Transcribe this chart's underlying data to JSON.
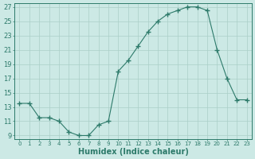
{
  "x": [
    0,
    1,
    2,
    3,
    4,
    5,
    6,
    7,
    8,
    9,
    10,
    11,
    12,
    13,
    14,
    15,
    16,
    17,
    18,
    19,
    20,
    21,
    22,
    23
  ],
  "y": [
    13.5,
    13.5,
    11.5,
    11.5,
    11.0,
    9.5,
    9.0,
    9.0,
    10.5,
    11.0,
    18.0,
    19.5,
    21.5,
    23.5,
    25.0,
    26.0,
    26.5,
    27.0,
    27.0,
    26.5,
    21.0,
    17.0,
    14.0,
    14.0
  ],
  "xlabel": "Humidex (Indice chaleur)",
  "ylim_min": 8.5,
  "ylim_max": 27.5,
  "xlim_min": -0.5,
  "xlim_max": 23.5,
  "yticks": [
    9,
    11,
    13,
    15,
    17,
    19,
    21,
    23,
    25,
    27
  ],
  "xtick_labels": [
    "0",
    "1",
    "2",
    "3",
    "4",
    "5",
    "6",
    "7",
    "8",
    "9",
    "10",
    "11",
    "12",
    "13",
    "14",
    "15",
    "16",
    "17",
    "18",
    "19",
    "20",
    "21",
    "22",
    "23"
  ],
  "line_color": "#2d7a6a",
  "marker": "+",
  "marker_size": 4,
  "marker_lw": 1.0,
  "bg_color": "#cce9e5",
  "grid_color": "#aacfc8",
  "tick_color": "#2d7a6a",
  "label_color": "#2d7a6a",
  "spine_color": "#2d7a6a",
  "xlabel_fontsize": 7,
  "xlabel_fontweight": "bold",
  "ytick_fontsize": 6,
  "xtick_fontsize": 5
}
